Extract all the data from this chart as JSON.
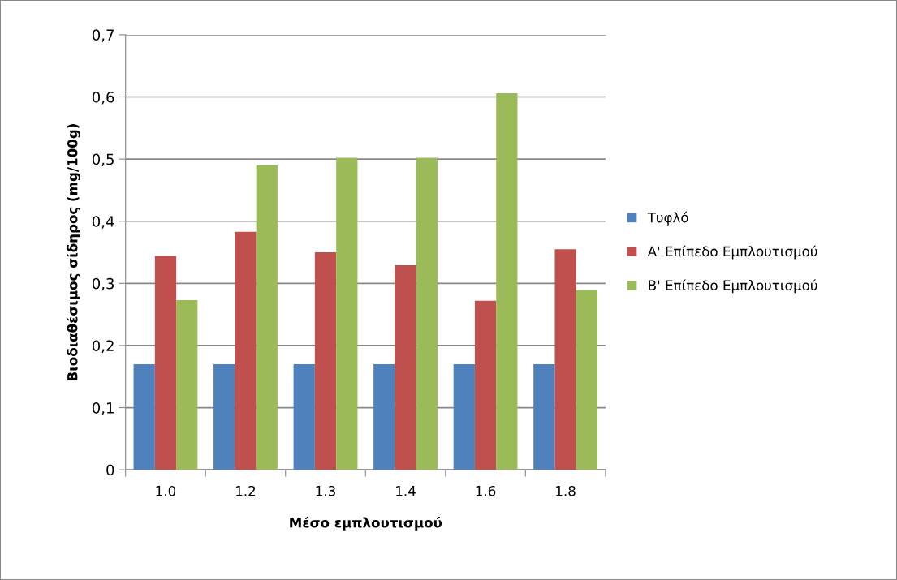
{
  "chart_data": {
    "type": "bar",
    "xlabel": "Μέσο εμπλουτισμού",
    "ylabel": "Βιοδιαθέσιμος σίδηρος (mg/100g)",
    "categories": [
      "1.0",
      "1.2",
      "1.3",
      "1.4",
      "1.6",
      "1.8"
    ],
    "series": [
      {
        "name": "Τυφλό",
        "color": "#4f81bd",
        "values": [
          0.17,
          0.17,
          0.17,
          0.17,
          0.17,
          0.17
        ]
      },
      {
        "name": "Α' Επίπεδο Εμπλουτισμού",
        "color": "#c0504d",
        "values": [
          0.344,
          0.383,
          0.35,
          0.329,
          0.272,
          0.355
        ]
      },
      {
        "name": "Β' Επίπεδο Εμπλουτισμού",
        "color": "#9bbb59",
        "values": [
          0.273,
          0.49,
          0.502,
          0.502,
          0.606,
          0.289
        ]
      }
    ],
    "ylim": [
      0,
      0.7
    ],
    "yticks": [
      0,
      {
        "value": 0.1,
        "label": "0,1"
      },
      {
        "value": 0.2,
        "label": "0,2"
      },
      {
        "value": 0.3,
        "label": "0,3"
      },
      {
        "value": 0.4,
        "label": "0,4"
      },
      {
        "value": 0.5,
        "label": "0,5"
      },
      {
        "value": 0.6,
        "label": "0,6"
      },
      {
        "value": 0.7,
        "label": "0,7"
      }
    ],
    "grid": "y",
    "legend": "right"
  }
}
